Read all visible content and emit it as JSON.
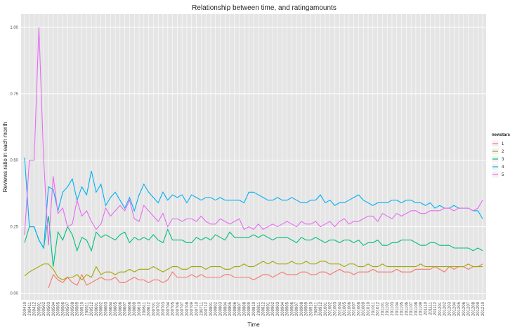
{
  "chart_data": {
    "type": "line",
    "title": "Relationship between time, and ratingamounts",
    "x_label": "Time",
    "y_label": "Reviews ratio in each month",
    "legend_title": "newstars",
    "legend_position": "right",
    "grid": true,
    "background": "#e5e5e5",
    "categories": [
      "200410",
      "200411",
      "200412",
      "200501",
      "200502",
      "200503",
      "200504",
      "200505",
      "200506",
      "200507",
      "200508",
      "200509",
      "200510",
      "200511",
      "200512",
      "200601",
      "200602",
      "200603",
      "200604",
      "200605",
      "200606",
      "200607",
      "200608",
      "200609",
      "200610",
      "200611",
      "200612",
      "200701",
      "200702",
      "200703",
      "200704",
      "200705",
      "200706",
      "200707",
      "200708",
      "200709",
      "200710",
      "200711",
      "200712",
      "200801",
      "200802",
      "200803",
      "200804",
      "200805",
      "200806",
      "200807",
      "200808",
      "200809",
      "200810",
      "200811",
      "200812",
      "200901",
      "200902",
      "200903",
      "200904",
      "200905",
      "200906",
      "200907",
      "200908",
      "200909",
      "200910",
      "200911",
      "200912",
      "201001",
      "201002",
      "201003",
      "201004",
      "201005",
      "201006",
      "201007",
      "201008",
      "201009",
      "201010",
      "201011",
      "201012",
      "201101",
      "201102",
      "201103",
      "201104",
      "201105",
      "201106",
      "201107",
      "201108",
      "201109",
      "201110",
      "201111",
      "201112",
      "201201",
      "201202",
      "201203",
      "201204",
      "201205",
      "201206",
      "201207",
      "201208",
      "201209",
      "201210"
    ],
    "ylim": [
      -0.025,
      1.05
    ],
    "yticks": [
      {
        "value": 0,
        "label": "0.00"
      },
      {
        "value": 0.25,
        "label": "0.25"
      },
      {
        "value": 0.5,
        "label": "0.50"
      },
      {
        "value": 0.75,
        "label": "0.75"
      },
      {
        "value": 1,
        "label": "1.00"
      }
    ],
    "series": [
      {
        "name": "1",
        "color": "#F8766D",
        "values": [
          null,
          null,
          null,
          null,
          null,
          0.02,
          0.07,
          0.05,
          0.04,
          0.06,
          0.04,
          0.03,
          0.07,
          0.03,
          0.04,
          0.05,
          0.06,
          0.05,
          0.05,
          0.06,
          0.04,
          0.04,
          0.05,
          0.06,
          0.05,
          0.05,
          0.04,
          0.05,
          0.05,
          0.04,
          0.05,
          0.08,
          0.06,
          0.06,
          0.06,
          0.07,
          0.06,
          0.07,
          0.06,
          0.06,
          0.06,
          0.06,
          0.07,
          0.07,
          0.06,
          0.06,
          0.06,
          0.06,
          0.05,
          0.06,
          0.07,
          0.07,
          0.06,
          0.07,
          0.08,
          0.07,
          0.07,
          0.07,
          0.08,
          0.08,
          0.07,
          0.07,
          0.08,
          0.08,
          0.07,
          0.08,
          0.09,
          0.08,
          0.08,
          0.07,
          0.08,
          0.08,
          0.08,
          0.09,
          0.08,
          0.08,
          0.08,
          0.08,
          0.09,
          0.08,
          0.08,
          0.08,
          0.09,
          0.09,
          0.09,
          0.09,
          0.1,
          0.09,
          0.08,
          0.1,
          0.09,
          0.1,
          0.1,
          0.09,
          0.1,
          0.1,
          0.11
        ]
      },
      {
        "name": "2",
        "color": "#A3A500",
        "values": [
          0.065,
          0.08,
          0.09,
          0.1,
          0.11,
          0.11,
          0.09,
          0.06,
          0.05,
          0.06,
          0.06,
          0.07,
          0.05,
          0.07,
          0.06,
          0.1,
          0.07,
          0.08,
          0.08,
          0.07,
          0.08,
          0.08,
          0.09,
          0.08,
          0.09,
          0.09,
          0.09,
          0.1,
          0.09,
          0.08,
          0.09,
          0.1,
          0.1,
          0.09,
          0.09,
          0.1,
          0.1,
          0.1,
          0.09,
          0.1,
          0.1,
          0.1,
          0.09,
          0.09,
          0.1,
          0.1,
          0.11,
          0.1,
          0.1,
          0.11,
          0.12,
          0.11,
          0.12,
          0.11,
          0.11,
          0.11,
          0.12,
          0.11,
          0.11,
          0.12,
          0.11,
          0.11,
          0.12,
          0.12,
          0.11,
          0.11,
          0.11,
          0.1,
          0.11,
          0.11,
          0.1,
          0.1,
          0.11,
          0.1,
          0.1,
          0.11,
          0.1,
          0.1,
          0.1,
          0.1,
          0.1,
          0.1,
          0.1,
          0.11,
          0.1,
          0.1,
          0.1,
          0.1,
          0.1,
          0.1,
          0.1,
          0.1,
          0.1,
          0.11,
          0.1,
          0.1,
          0.1
        ]
      },
      {
        "name": "3",
        "color": "#00BF7D",
        "values": [
          0.19,
          0.25,
          0.25,
          0.2,
          0.17,
          0.29,
          0.1,
          0.23,
          0.2,
          0.25,
          0.22,
          0.16,
          0.21,
          0.2,
          0.16,
          0.23,
          0.21,
          0.22,
          0.21,
          0.2,
          0.22,
          0.23,
          0.19,
          0.21,
          0.2,
          0.21,
          0.2,
          0.22,
          0.2,
          0.19,
          0.24,
          0.2,
          0.2,
          0.2,
          0.19,
          0.19,
          0.21,
          0.2,
          0.21,
          0.2,
          0.22,
          0.21,
          0.2,
          0.23,
          0.21,
          0.21,
          0.21,
          0.21,
          0.22,
          0.21,
          0.22,
          0.21,
          0.2,
          0.21,
          0.21,
          0.21,
          0.2,
          0.19,
          0.21,
          0.2,
          0.2,
          0.21,
          0.2,
          0.19,
          0.2,
          0.2,
          0.19,
          0.2,
          0.2,
          0.19,
          0.2,
          0.18,
          0.19,
          0.19,
          0.2,
          0.18,
          0.18,
          0.19,
          0.19,
          0.2,
          0.2,
          0.2,
          0.19,
          0.18,
          0.18,
          0.19,
          0.19,
          0.18,
          0.18,
          0.18,
          0.17,
          0.17,
          0.17,
          0.17,
          0.16,
          0.17,
          0.16
        ]
      },
      {
        "name": "4",
        "color": "#00B0F6",
        "values": [
          0.51,
          0.25,
          0.25,
          0.2,
          0.17,
          0.4,
          0.39,
          0.31,
          0.38,
          0.4,
          0.43,
          0.35,
          0.4,
          0.37,
          0.46,
          0.38,
          0.41,
          0.33,
          0.36,
          0.38,
          0.35,
          0.32,
          0.36,
          0.31,
          0.37,
          0.41,
          0.38,
          0.36,
          0.34,
          0.38,
          0.35,
          0.37,
          0.36,
          0.37,
          0.34,
          0.37,
          0.36,
          0.35,
          0.36,
          0.36,
          0.35,
          0.36,
          0.35,
          0.35,
          0.35,
          0.35,
          0.34,
          0.38,
          0.38,
          0.37,
          0.36,
          0.35,
          0.35,
          0.36,
          0.35,
          0.35,
          0.36,
          0.35,
          0.34,
          0.34,
          0.35,
          0.35,
          0.37,
          0.34,
          0.35,
          0.33,
          0.34,
          0.34,
          0.35,
          0.36,
          0.37,
          0.35,
          0.34,
          0.33,
          0.34,
          0.34,
          0.34,
          0.35,
          0.35,
          0.34,
          0.35,
          0.35,
          0.34,
          0.34,
          0.33,
          0.34,
          0.32,
          0.33,
          0.32,
          0.32,
          0.33,
          0.32,
          0.32,
          0.32,
          0.31,
          0.31,
          0.28
        ]
      },
      {
        "name": "5",
        "color": "#E76BF3",
        "values": [
          0.22,
          0.5,
          0.5,
          1,
          0.5,
          0.18,
          0.44,
          0.3,
          0.32,
          0.25,
          0.26,
          0.35,
          0.29,
          0.31,
          0.27,
          0.24,
          0.26,
          0.32,
          0.29,
          0.31,
          0.33,
          0.31,
          0.35,
          0.28,
          0.27,
          0.33,
          0.31,
          0.29,
          0.27,
          0.3,
          0.25,
          0.28,
          0.28,
          0.27,
          0.28,
          0.28,
          0.27,
          0.29,
          0.27,
          0.26,
          0.26,
          0.28,
          0.27,
          0.26,
          0.27,
          0.28,
          0.24,
          0.25,
          0.24,
          0.26,
          0.24,
          0.25,
          0.26,
          0.25,
          0.26,
          0.27,
          0.26,
          0.25,
          0.27,
          0.26,
          0.26,
          0.27,
          0.25,
          0.26,
          0.27,
          0.25,
          0.27,
          0.28,
          0.26,
          0.27,
          0.27,
          0.28,
          0.29,
          0.29,
          0.27,
          0.3,
          0.29,
          0.28,
          0.3,
          0.29,
          0.3,
          0.31,
          0.31,
          0.3,
          0.3,
          0.31,
          0.31,
          0.31,
          0.32,
          0.32,
          0.31,
          0.32,
          0.32,
          0.32,
          0.31,
          0.32,
          0.35
        ]
      }
    ]
  }
}
